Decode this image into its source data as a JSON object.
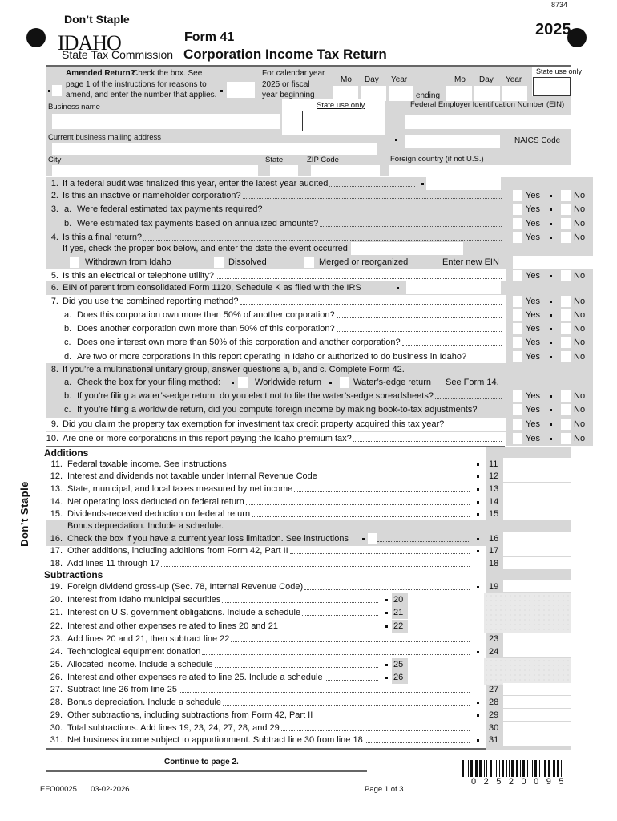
{
  "header": {
    "dont_staple": "Don’t Staple",
    "logo": "IDAHO",
    "agency": "State Tax Commission",
    "form_number": "Form 41",
    "form_title": "Corporation Income Tax Return",
    "form_code": "8734",
    "year": "2025"
  },
  "top": {
    "amended_bold": "Amended Return?",
    "amended_line1": " Check the box. See",
    "amended_line2": "page 1 of the instructions for reasons to",
    "amended_line3": "amend, and enter the number that applies.",
    "calendar_line1": "For calendar year",
    "calendar_line2": "2025 or fiscal",
    "calendar_line3": "year beginning",
    "mo": "Mo",
    "day": "Day",
    "yr": "Year",
    "ending": "ending",
    "state_use": "State use only",
    "business_name": "Business name",
    "ein": "Federal Employer Identification Number (EIN)",
    "address": "Current business mailing address",
    "naics": "NAICS Code",
    "city": "City",
    "state": "State",
    "zip": "ZIP Code",
    "foreign": "Foreign country (if not U.S.)"
  },
  "yes": "Yes",
  "no": "No",
  "questions": [
    {
      "num": "1.",
      "sub": "",
      "text": "If a federal audit was finalized this year, enter the latest year audited"
    },
    {
      "num": "2.",
      "sub": "",
      "text": "Is this an inactive or nameholder corporation?"
    },
    {
      "num": "3.",
      "sub": "a.",
      "text": "Were federal estimated tax payments required?"
    },
    {
      "num": "",
      "sub": "b.",
      "text": "Were estimated tax payments based on annualized amounts?"
    },
    {
      "num": "4.",
      "sub": "",
      "text": "Is this a final return?"
    },
    {
      "num": "",
      "sub": "",
      "text": "If yes, check the proper box below, and enter the date the event occurred"
    },
    {
      "num": "",
      "sub": "",
      "text": ""
    },
    {
      "num": "5.",
      "sub": "",
      "text": "Is this an electrical or telephone utility?"
    },
    {
      "num": "6.",
      "sub": "",
      "text": "EIN of parent from consolidated Form 1120, Schedule K as filed with the IRS"
    },
    {
      "num": "7.",
      "sub": "",
      "text": "Did you use the combined reporting method?"
    },
    {
      "num": "",
      "sub": "a.",
      "text": "Does this corporation own more than 50% of another corporation?"
    },
    {
      "num": "",
      "sub": "b.",
      "text": "Does another corporation own more than 50% of this corporation?"
    },
    {
      "num": "",
      "sub": "c.",
      "text": "Does one interest own more than 50% of this corporation and another corporation?"
    },
    {
      "num": "",
      "sub": "d.",
      "text": "Are two or more corporations in this report operating in Idaho or authorized to do business in Idaho?"
    },
    {
      "num": "8.",
      "sub": "",
      "text": "If you’re a multinational unitary group, answer questions a, b, and c. Complete Form 42."
    },
    {
      "num": "",
      "sub": "a.",
      "text": "Check the box for your filing method:"
    },
    {
      "num": "",
      "sub": "b.",
      "text": "If you’re filing a water’s-edge return, do you elect not to file the water’s-edge spreadsheets?"
    },
    {
      "num": "",
      "sub": "c.",
      "text": "If you’re filing a worldwide return, did you compute foreign income by making book-to-tax adjustments?"
    },
    {
      "num": "9.",
      "sub": "",
      "text": "Did you claim the property tax exemption for investment tax credit property acquired this tax year?"
    },
    {
      "num": "10.",
      "sub": "",
      "text": "Are one or more corporations in this report paying the Idaho premium tax?"
    }
  ],
  "q4_options": {
    "withdrawn": "Withdrawn from Idaho",
    "dissolved": "Dissolved",
    "merged": "Merged or reorganized",
    "new_ein": "Enter new EIN"
  },
  "q8a": {
    "worldwide": "Worldwide return",
    "waters_edge": "Water’s-edge return",
    "see": "See Form 14."
  },
  "additions": {
    "heading": "Additions",
    "lines": [
      {
        "num": "11.",
        "text": "Federal taxable income. See instructions",
        "box": "11"
      },
      {
        "num": "12.",
        "text": "Interest and dividends not taxable under Internal Revenue Code",
        "box": "12"
      },
      {
        "num": "13.",
        "text": "State, municipal, and local taxes measured by net income",
        "box": "13"
      },
      {
        "num": "14.",
        "text": "Net operating loss deducted on federal return",
        "box": "14"
      },
      {
        "num": "15.",
        "text": "Dividends-received deduction on federal return",
        "box": "15"
      },
      {
        "num": "16.",
        "text": "Bonus depreciation. Include a schedule.",
        "text2": "Check the box if you have a current year loss limitation. See instructions",
        "box": "16"
      },
      {
        "num": "17.",
        "text": "Other additions, including additions from Form 42, Part II",
        "box": "17"
      },
      {
        "num": "18.",
        "text": "Add lines 11 through 17",
        "box": "18"
      }
    ]
  },
  "subtractions": {
    "heading": "Subtractions",
    "lines": [
      {
        "num": "19.",
        "text": "Foreign dividend gross-up (Sec. 78, Internal Revenue Code)",
        "box": "19"
      },
      {
        "num": "20.",
        "text": "Interest from Idaho municipal securities",
        "box": "20"
      },
      {
        "num": "21.",
        "text": "Interest on U.S. government obligations. Include a schedule",
        "box": "21"
      },
      {
        "num": "22.",
        "text": "Interest and other expenses related to lines 20 and 21",
        "box": "22"
      },
      {
        "num": "23.",
        "text": "Add lines 20 and 21, then subtract line 22",
        "box": "23"
      },
      {
        "num": "24.",
        "text": "Technological equipment donation",
        "box": "24"
      },
      {
        "num": "25.",
        "text": "Allocated income. Include a schedule",
        "box": "25"
      },
      {
        "num": "26.",
        "text": "Interest and other expenses related to line 25. Include a schedule",
        "box": "26"
      },
      {
        "num": "27.",
        "text": "Subtract line 26 from line 25",
        "box": "27"
      },
      {
        "num": "28.",
        "text": "Bonus depreciation. Include a schedule",
        "box": "28"
      },
      {
        "num": "29.",
        "text": "Other subtractions, including subtractions from Form 42, Part II",
        "box": "29"
      },
      {
        "num": "30.",
        "text": "Total subtractions. Add lines 19, 23, 24, 27, 28, and 29",
        "box": "30"
      },
      {
        "num": "31.",
        "text": "Net business income subject to apportionment. Subtract line 30 from line 18",
        "box": "31"
      }
    ]
  },
  "footer": {
    "continue": "Continue to page 2.",
    "form_id": "EFO00025",
    "date": "03-02-2026",
    "page": "Page 1 of 3",
    "barcode_number": "02520095"
  },
  "colors": {
    "shade": "#d7d7d7",
    "light_shade": "#e9e9e9",
    "ink": "#111111"
  }
}
